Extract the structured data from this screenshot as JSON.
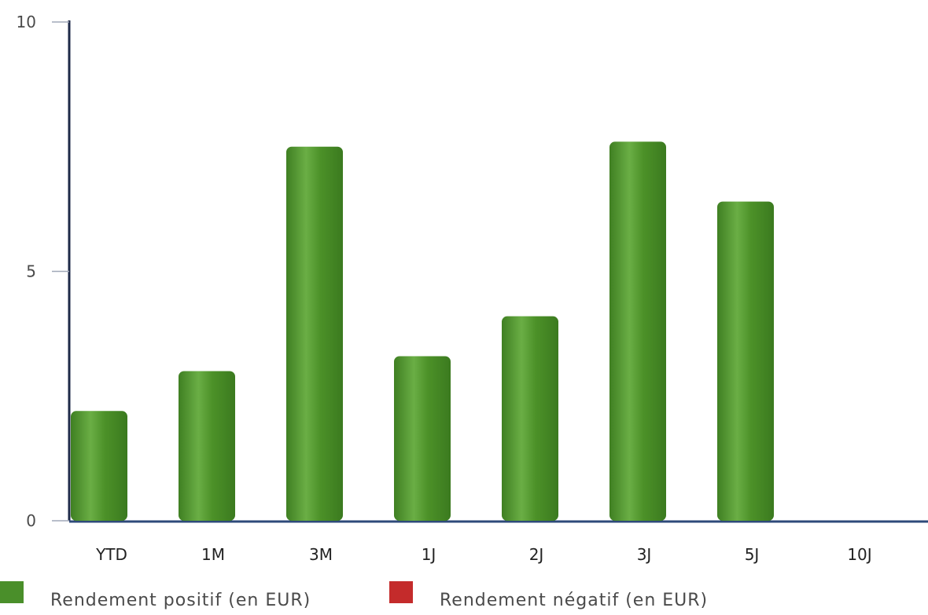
{
  "chart_data": {
    "type": "bar",
    "categories": [
      "YTD",
      "1M",
      "3M",
      "1J",
      "2J",
      "3J",
      "5J",
      "10J"
    ],
    "values": [
      2.2,
      3.0,
      7.5,
      3.3,
      4.1,
      7.6,
      6.4,
      0
    ],
    "yticks": [
      "0",
      "5",
      "10"
    ],
    "ylim": [
      0,
      10
    ],
    "grid": false,
    "legend_position": "bottom-left",
    "series": [
      {
        "name": "Rendement positif (en EUR)",
        "color": "#4a8f2a"
      },
      {
        "name": "Rendement négatif (en EUR)",
        "color": "#c42b2b"
      }
    ]
  },
  "colors": {
    "positive": "#4a8f2a",
    "positive_light": "#6aae45",
    "negative": "#c42b2b",
    "axis": "#1e2a48",
    "baseline": "#2e4a7a"
  }
}
